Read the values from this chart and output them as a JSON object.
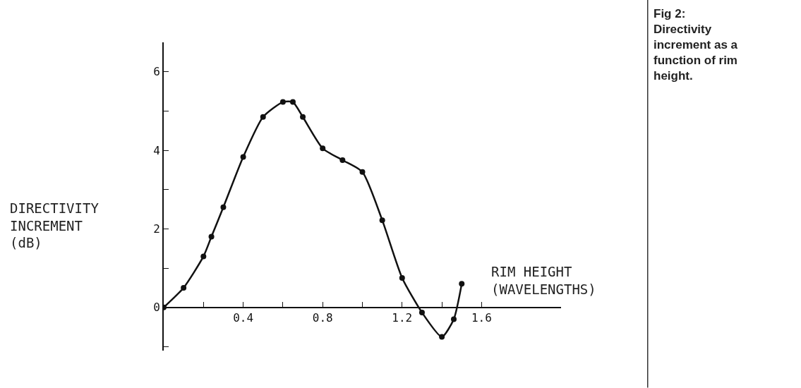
{
  "chart_data": {
    "type": "line",
    "x": [
      0,
      0.1,
      0.2,
      0.24,
      0.3,
      0.4,
      0.5,
      0.6,
      0.65,
      0.7,
      0.8,
      0.9,
      1.0,
      1.1,
      1.2,
      1.3,
      1.4,
      1.46,
      1.5
    ],
    "series": [
      {
        "color": "#111111",
        "values": [
          0,
          0.5,
          1.3,
          1.8,
          2.55,
          3.83,
          4.85,
          5.23,
          5.23,
          4.85,
          4.05,
          3.75,
          3.45,
          2.22,
          0.75,
          -0.13,
          -0.75,
          -0.3,
          0.6
        ]
      }
    ],
    "xlim": [
      0,
      2.0
    ],
    "ylim": [
      -1.1,
      6.75
    ],
    "xticks": [
      {
        "value": 0.2,
        "label": null
      },
      0.4,
      {
        "value": 0.6,
        "label": null
      },
      0.8,
      {
        "value": 1.0,
        "label": null
      },
      1.2,
      {
        "value": 1.4,
        "label": null
      },
      1.6
    ],
    "yticks": [
      {
        "value": -1,
        "label": null
      },
      0,
      {
        "value": 1,
        "label": null
      },
      2,
      {
        "value": 3,
        "label": null
      },
      4,
      {
        "value": 5,
        "label": null
      },
      6
    ],
    "xlabel": "RIM HEIGHT\n(WAVELENGTHS)",
    "ylabel": "DIRECTIVITY\nINCREMENT\n(dB)",
    "annotations": [
      "Fig 2:\nDirectivity\nincrement as a\nfunction of rim\nheight."
    ],
    "marker": "circle",
    "line_style": "solid"
  }
}
